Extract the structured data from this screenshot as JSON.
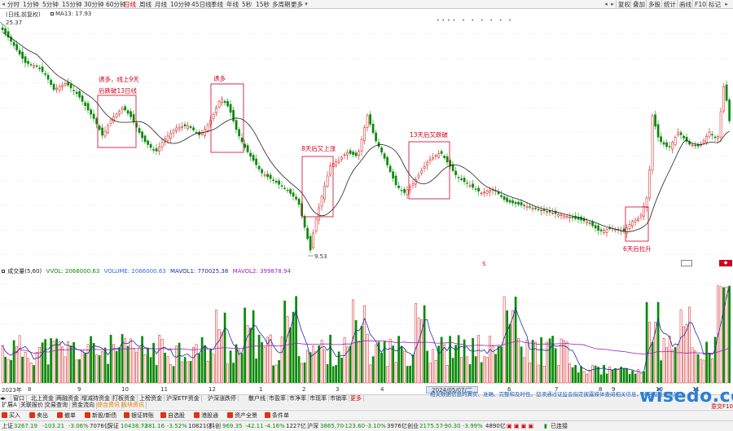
{
  "toolbar": {
    "timeframes": [
      "分时",
      "1分钟",
      "5分钟",
      "15分钟",
      "30分钟",
      "60分钟",
      "日线",
      "周线",
      "月线",
      "10分钟",
      "45日线",
      "季线",
      "年线",
      "5秒",
      "15秒",
      "多周期",
      "更多"
    ],
    "active_timeframe": "日线",
    "right_buttons": [
      "复权",
      "叠加",
      "多股",
      "统计",
      "画线",
      "F10",
      "标记"
    ]
  },
  "chart": {
    "title": "(日线,前复权)",
    "ma_label": "MA13: 17.93",
    "high_label": "25.37",
    "low_label": "9.53",
    "markers": "•••• • •    • •   •    •"
  },
  "annotations": [
    {
      "lines": [
        "诱多，线上9天",
        "后跌破13日线"
      ]
    },
    {
      "lines": [
        "诱多"
      ]
    },
    {
      "lines": [
        "8天后又上涨"
      ]
    },
    {
      "lines": [
        "13天后又跌破"
      ]
    },
    {
      "lines": [
        "6天后拉升"
      ]
    }
  ],
  "volume": {
    "title": "成交量(5,60)",
    "vvol": "VVOL: 2066000.63",
    "volume": "VOLUME: 2066000.63",
    "mavol1": "MAVOL1: 770025.38",
    "mavol2": "MAVOL2: 399878.94",
    "colors": {
      "vvol": "#0a8a0a",
      "volume": "#2a6fd4",
      "mavol1": "#1a2ea0",
      "mavol2": "#a020c0"
    }
  },
  "xaxis": {
    "labels": [
      "2023年",
      "8",
      "9",
      "10",
      "11",
      "12",
      "1",
      "2",
      "3",
      "4",
      "6",
      "7",
      "8",
      "9",
      "10",
      "11"
    ],
    "selected_date": "2024/05/07/二"
  },
  "tabs_row1": [
    "窗口",
    "北上资金",
    "两融资金",
    "增减持资金",
    "打板资金",
    "上榜资金",
    "沪深ETF资金",
    "沪深涨跌停",
    "散户线",
    "市盈率",
    "市净率",
    "市现率",
    "市销率",
    "更多"
  ],
  "tabs_row2": [
    "扩展A",
    "关联报价",
    "交易查询",
    "资金流向",
    "综合资讯",
    "板块资讯"
  ],
  "notice": "相关数据信息的真实、准确、完整和及时性。您须通过证监会指定披露媒体查阅相关信息，并自担投资风险。",
  "watermark": "wisedo.com",
  "f10_tab": "意交F10",
  "taskbar": [
    "买入",
    "卖出",
    "撤单",
    "新股/新债",
    "银证转账",
    "自选股",
    "港股通",
    "资产全景",
    "条件单"
  ],
  "status": {
    "sh_name": "上证",
    "sh_val": "3267.19",
    "sh_chg": "-103.21",
    "sh_pct": "-3.06%",
    "sh_amt": "7076亿",
    "sz_name": "深证",
    "sz_val": "10438.72",
    "sz_chg": "-381.16",
    "sz_pct": "-3.52%",
    "sz_amt": "10821亿",
    "kc_name": "科创",
    "kc_val": "969.35",
    "kc_chg": "-42.11",
    "kc_pct": "-4.16%",
    "kc_amt": "1227亿",
    "hs_name": "沪深",
    "hs_val": "3865.70",
    "hs_chg": "-123.60",
    "hs_pct": "-3.10%",
    "hs_amt": "3976亿",
    "cy_name": "创业",
    "cy_val": "2175.57",
    "cy_chg": "-90.30",
    "cy_pct": "-3.99%",
    "cy_amt": "4890亿",
    "connected": "已连接"
  },
  "colors": {
    "up": "#d31111",
    "down": "#0a8a0a",
    "ma": "#222222",
    "box": "#d0021b",
    "accent": "#d0021b"
  }
}
